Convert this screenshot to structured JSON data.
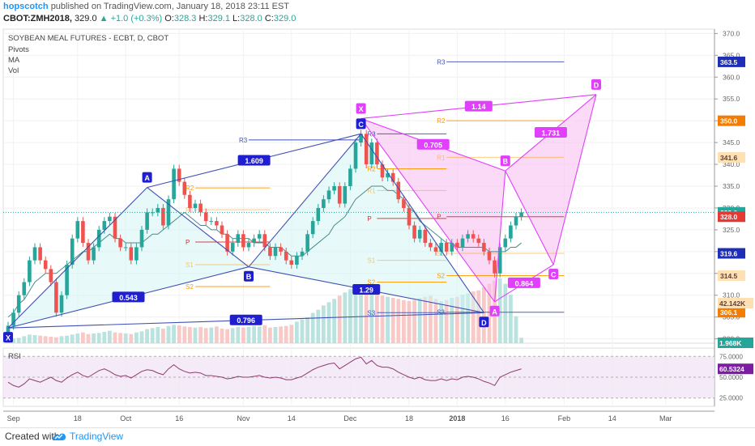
{
  "header": {
    "author": "hopscotch",
    "published_text": "published on TradingView.com, January 18, 2018 23:11 EST",
    "symbol": "CBOT:ZMH2018,",
    "last": "329.0",
    "change": "▲ +1.0 (+0.3%)",
    "o_label": "O:",
    "o": "328.3",
    "h_label": "H:",
    "h": "329.1",
    "l_label": "L:",
    "l": "328.0",
    "c_label": "C:",
    "c": "329.0"
  },
  "legend": {
    "title": "SOYBEAN MEAL FUTURES - ECBT, D, CBOT",
    "indicators": [
      "Pivots",
      "MA",
      "Vol"
    ]
  },
  "rsi_label": "RSI",
  "footer": {
    "created": "Created with",
    "brand": "TradingView"
  },
  "colors": {
    "up": "#26a69a",
    "down": "#ef5350",
    "harmonic_blue": "#3f51b5",
    "harmonic_blue_label": "#1f1fd0",
    "harmonic_pink": "#e040fb",
    "pivot": "#ff9800",
    "pivot_p": "#d32f2f",
    "ma": "#4a8c8c",
    "rsi": "#8e3a6e",
    "rsi_bg": "#f3e5f5",
    "price_tag": "#2196f3"
  },
  "chart_data": {
    "type": "candlestick",
    "title": "SOYBEAN MEAL FUTURES - ECBT, D, CBOT",
    "ylim": [
      299,
      371
    ],
    "y_ticks": [
      300,
      305,
      310,
      315,
      320,
      325,
      330,
      335,
      340,
      345,
      350,
      355,
      360,
      365,
      370
    ],
    "y_tick_labels": [
      "300.0",
      "305.0",
      "310.0",
      "315.0",
      "320.0",
      "325.0",
      "330.0",
      "335.0",
      "340.0",
      "345.0",
      "350.0",
      "355.0",
      "360.0",
      "365.0",
      "370.0"
    ],
    "x_tick_labels": [
      {
        "label": "Sep",
        "i": 1
      },
      {
        "label": "18",
        "i": 13
      },
      {
        "label": "Oct",
        "i": 22
      },
      {
        "label": "16",
        "i": 32
      },
      {
        "label": "Nov",
        "i": 44
      },
      {
        "label": "14",
        "i": 53
      },
      {
        "label": "Dec",
        "i": 64
      },
      {
        "label": "18",
        "i": 75
      },
      {
        "label": "2018",
        "i": 84
      },
      {
        "label": "16",
        "i": 93
      },
      {
        "label": "Feb",
        "i": 104
      },
      {
        "label": "14",
        "i": 113
      },
      {
        "label": "Mar",
        "i": 123
      }
    ],
    "closes": [
      303,
      306,
      310,
      313,
      318,
      321,
      318,
      316,
      313,
      306,
      310,
      317,
      323,
      327,
      322,
      318,
      321,
      325,
      327,
      328,
      323,
      321,
      321,
      318,
      321,
      325,
      329,
      329,
      330,
      326,
      332,
      339,
      336,
      333,
      330,
      331,
      329,
      327,
      327,
      326,
      324,
      320,
      322,
      324,
      321,
      322,
      323,
      324,
      321,
      319,
      321,
      320,
      318,
      317,
      319,
      320,
      324,
      327,
      330,
      332,
      334,
      335,
      331,
      335,
      339,
      345,
      347,
      340,
      345,
      340,
      337,
      338,
      336,
      332,
      330,
      326,
      323,
      325,
      322,
      321,
      320,
      322,
      320,
      322,
      321,
      323,
      324,
      323,
      322,
      320,
      318,
      315,
      321,
      323,
      326,
      328,
      329
    ],
    "ohlc_note": "open of each bar = close of previous bar",
    "ma": [
      305,
      306,
      308,
      309,
      311,
      313,
      314,
      315,
      315,
      315,
      316,
      317,
      318,
      319,
      320,
      320,
      321,
      322,
      323,
      324,
      323,
      323,
      322,
      322,
      322,
      322,
      323,
      324,
      324,
      325,
      326,
      327,
      328,
      329,
      328,
      327,
      326,
      326,
      325,
      325,
      324,
      324,
      323,
      323,
      323,
      323,
      322,
      322,
      322,
      321,
      321,
      321,
      320,
      319,
      319,
      319,
      320,
      321,
      322,
      323,
      324,
      326,
      327,
      328,
      330,
      332,
      333,
      334,
      335,
      335,
      335,
      334,
      334,
      333,
      332,
      330,
      329,
      327,
      326,
      325,
      324,
      323,
      322,
      322,
      321,
      321,
      321,
      321,
      321,
      321,
      320,
      320,
      320,
      320,
      321,
      321,
      322
    ],
    "volume": [
      0.8,
      0.9,
      1.0,
      1.3,
      1.6,
      1.5,
      1.4,
      1.3,
      1.2,
      1.1,
      1.3,
      1.4,
      1.6,
      1.8,
      2.0,
      1.7,
      1.8,
      1.9,
      2.1,
      2.3,
      2.0,
      1.9,
      1.8,
      1.7,
      2.0,
      2.2,
      2.6,
      2.8,
      3.0,
      2.7,
      3.2,
      3.4,
      3.3,
      3.1,
      3.0,
      2.9,
      3.0,
      2.8,
      2.9,
      3.1,
      2.7,
      2.6,
      2.8,
      3.0,
      2.9,
      3.0,
      3.2,
      3.1,
      3.3,
      2.9,
      3.0,
      3.1,
      3.2,
      3.4,
      4.0,
      4.4,
      4.8,
      5.6,
      6.2,
      7.0,
      7.6,
      8.2,
      8.8,
      9.4,
      10.0,
      10.4,
      10.0,
      9.6,
      9.2,
      9.0,
      8.8,
      8.6,
      8.4,
      8.2,
      8.0,
      7.8,
      8.0,
      8.4,
      8.6,
      8.8,
      8.2,
      7.8,
      8.0,
      8.4,
      8.6,
      9.0,
      9.2,
      9.6,
      9.8,
      10.4,
      11.0,
      11.6,
      12.0,
      11.0,
      9.0,
      5.0,
      1.0
    ],
    "volume_label": "42.142K",
    "pivots": {
      "period1": {
        "label_x_i": 35,
        "R3": null,
        "R2": 334.6,
        "R1": 329.6,
        "P": 322.2,
        "S1": 317.0,
        "S2": 312.0,
        "from_i": 35,
        "to_i": 49
      },
      "period2": {
        "label_x_i": 69,
        "R3": 347.0,
        "R2": 339.0,
        "R1": 334.0,
        "P": 327.6,
        "S1": 318.0,
        "S2": 313.0,
        "S3": 306.0,
        "from_i": 69,
        "to_i": 82
      },
      "period3": {
        "R3": 363.5,
        "R2": 350.0,
        "R1": 341.6,
        "P": 328.0,
        "S1": 319.6,
        "S2": 314.5,
        "S3": 306.1,
        "from_i": 82,
        "to_i": 104
      }
    },
    "pattern_blue": {
      "points": [
        {
          "label": "X",
          "i": 0,
          "y": 302.5
        },
        {
          "label": "A",
          "i": 26,
          "y": 334.7
        },
        {
          "label": "B",
          "i": 45,
          "y": 316.5
        },
        {
          "label": "C",
          "i": 66,
          "y": 347.0
        },
        {
          "label": "D",
          "i": 89,
          "y": 306.0
        }
      ],
      "ratios": [
        {
          "text": "0.543"
        },
        {
          "text": "1.609"
        },
        {
          "text": "1.29"
        },
        {
          "text": "0.796"
        }
      ]
    },
    "pattern_pink": {
      "points": [
        {
          "label": "X",
          "i": 66,
          "y": 350.5
        },
        {
          "label": "A",
          "i": 91,
          "y": 308.5
        },
        {
          "label": "B",
          "i": 93,
          "y": 338.5
        },
        {
          "label": "C",
          "i": 102,
          "y": 317.0
        },
        {
          "label": "D",
          "i": 110,
          "y": 356.0
        }
      ],
      "ratios": [
        {
          "text": "1.14"
        },
        {
          "text": "0.705"
        },
        {
          "text": "1.731"
        },
        {
          "text": "0.864"
        }
      ]
    },
    "price_tags": [
      {
        "value": "370.0"
      },
      {
        "value": "363.5",
        "style": "blue"
      },
      {
        "value": "350.0",
        "style": "orange"
      },
      {
        "value": "341.6",
        "style": "light-orange"
      },
      {
        "value": "329.0",
        "style": "teal"
      },
      {
        "value": "328.0",
        "style": "red"
      },
      {
        "value": "319.6",
        "style": "blue"
      },
      {
        "value": "314.5",
        "style": "light-orange"
      },
      {
        "value": "306.1",
        "style": "orange"
      }
    ],
    "vol_tags": [
      "42.142K",
      "1.968K"
    ],
    "rsi": {
      "values": [
        44,
        40,
        38,
        42,
        48,
        46,
        44,
        47,
        50,
        46,
        44,
        49,
        53,
        56,
        52,
        50,
        54,
        58,
        60,
        57,
        53,
        51,
        52,
        49,
        53,
        57,
        59,
        58,
        55,
        53,
        60,
        65,
        60,
        57,
        55,
        56,
        55,
        52,
        52,
        51,
        50,
        48,
        49,
        51,
        50,
        50,
        51,
        52,
        50,
        49,
        50,
        49,
        47,
        47,
        49,
        51,
        55,
        59,
        62,
        64,
        66,
        67,
        60,
        64,
        68,
        72,
        74,
        66,
        70,
        64,
        62,
        62,
        60,
        56,
        53,
        50,
        48,
        50,
        47,
        46,
        46,
        48,
        46,
        48,
        47,
        50,
        51,
        50,
        48,
        45,
        43,
        40,
        50,
        53,
        56,
        58,
        60
      ],
      "ylim": [
        15,
        85
      ],
      "ticks": [
        "75.0000",
        "50.0000",
        "25.0000"
      ],
      "last": "60.5324"
    }
  }
}
